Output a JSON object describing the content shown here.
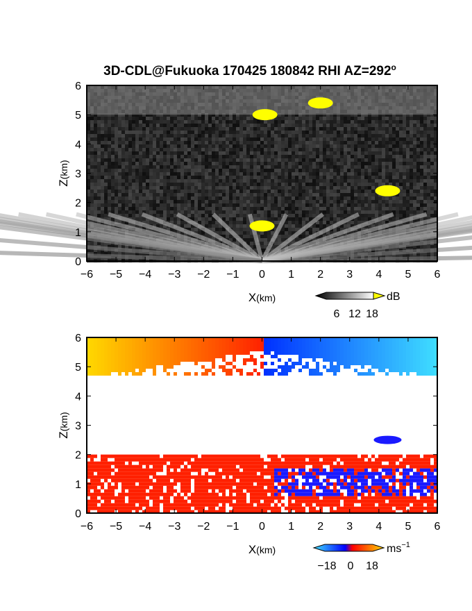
{
  "title": {
    "main": "3D-CDL@Fukuoka 170425 180842 RHI AZ=292",
    "degree_symbol": "o"
  },
  "chart_data": [
    {
      "id": "reflectivity",
      "type": "heatmap",
      "xlabel": "X",
      "xlabel_unit": "(km)",
      "ylabel": "Z",
      "ylabel_unit": "(km)",
      "xlim": [
        -6,
        6
      ],
      "ylim": [
        0,
        6
      ],
      "xticks": [
        "-6",
        "-5",
        "-4",
        "-3",
        "-2",
        "-1",
        "0",
        "1",
        "2",
        "3",
        "4",
        "5",
        "6"
      ],
      "yticks": [
        "0",
        "1",
        "2",
        "3",
        "4",
        "5",
        "6"
      ],
      "colorbar": {
        "unit": "dB",
        "ticks": [
          "6",
          "12",
          "18"
        ],
        "range": [
          0,
          20
        ],
        "colors": {
          "low": "#000000",
          "high": "#ffffff",
          "over": "#ffff00"
        }
      },
      "features": [
        {
          "kind": "clutter-band",
          "z_top": 1.6,
          "x_range": [
            -6,
            6
          ]
        },
        {
          "kind": "upper-layer",
          "z_range": [
            5.0,
            6.0
          ],
          "x_range": [
            -6,
            6
          ]
        },
        {
          "kind": "strong-echo",
          "x": 0.1,
          "z": 5.0
        },
        {
          "kind": "strong-echo",
          "x": 2.0,
          "z": 5.4
        },
        {
          "kind": "strong-echo",
          "x": 0.0,
          "z": 1.2
        },
        {
          "kind": "strong-echo",
          "x": 4.3,
          "z": 2.4
        }
      ]
    },
    {
      "id": "velocity",
      "type": "heatmap",
      "xlabel": "X",
      "xlabel_unit": "(km)",
      "ylabel": "Z",
      "ylabel_unit": "(km)",
      "xlim": [
        -6,
        6
      ],
      "ylim": [
        0,
        6
      ],
      "xticks": [
        "-6",
        "-5",
        "-4",
        "-3",
        "-2",
        "-1",
        "0",
        "1",
        "2",
        "3",
        "4",
        "5",
        "6"
      ],
      "yticks": [
        "0",
        "1",
        "2",
        "3",
        "4",
        "5",
        "6"
      ],
      "colorbar": {
        "unit": "ms",
        "unit_exp": "−1",
        "ticks": [
          "−18",
          "0",
          "18"
        ],
        "range": [
          -20,
          20
        ],
        "colors": {
          "neg_far": "#40e0ff",
          "neg_near": "#0000ff",
          "pos_near": "#ff0000",
          "pos_far": "#ffd700"
        }
      },
      "features": [
        {
          "kind": "upper-layer",
          "z_range": [
            4.7,
            6.0
          ],
          "x_range": [
            -6,
            6
          ]
        },
        {
          "kind": "lower-band",
          "z_range": [
            0.0,
            2.0
          ],
          "x_range": [
            -6,
            6
          ]
        },
        {
          "kind": "blue-patch",
          "x": 4.3,
          "z": 2.5
        }
      ]
    }
  ]
}
